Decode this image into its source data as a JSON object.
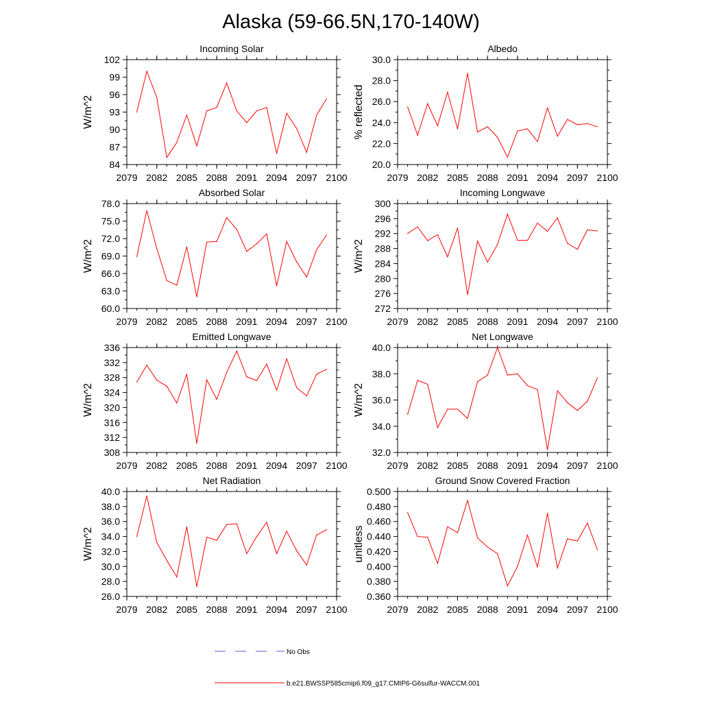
{
  "figure": {
    "title": "Alaska (59-66.5N,170-140W)",
    "legend": [
      {
        "label": "No Obs",
        "color": "#5a5ad2",
        "style": "dashed"
      },
      {
        "label": "b.e21.BWSSP585cmip6.f09_g17.CMIP6-G6sulfur-WACCM.001",
        "color": "#ff0000",
        "style": "solid"
      }
    ]
  },
  "chart_data": [
    {
      "type": "line",
      "title": "Incoming Solar",
      "xlabel": "",
      "ylabel": "W/m^2",
      "xlim": [
        2079,
        2100
      ],
      "xticks": [
        "2079",
        "2082",
        "2085",
        "2088",
        "2091",
        "2094",
        "2097",
        "2100"
      ],
      "ylim": [
        84,
        102
      ],
      "yticks": [
        "84",
        "87",
        "90",
        "93",
        "96",
        "99",
        "102"
      ],
      "line_color": "#ff0000",
      "x": [
        2080,
        2081,
        2082,
        2083,
        2084,
        2085,
        2086,
        2087,
        2088,
        2089,
        2090,
        2091,
        2092,
        2093,
        2094,
        2095,
        2096,
        2097,
        2098,
        2099
      ],
      "values": [
        93.0,
        100.0,
        95.5,
        85.2,
        87.8,
        92.5,
        87.2,
        93.2,
        93.8,
        98.0,
        93.2,
        91.2,
        93.2,
        93.8,
        85.9,
        92.8,
        90.2,
        86.1,
        92.5,
        95.3
      ]
    },
    {
      "type": "line",
      "title": "Albedo",
      "xlabel": "",
      "ylabel": "% reflected",
      "xlim": [
        2079,
        2100
      ],
      "xticks": [
        "2079",
        "2082",
        "2085",
        "2088",
        "2091",
        "2094",
        "2097",
        "2100"
      ],
      "ylim": [
        20.0,
        30.0
      ],
      "yticks": [
        "20.0",
        "22.0",
        "24.0",
        "26.0",
        "28.0",
        "30.0"
      ],
      "line_color": "#ff0000",
      "x": [
        2080,
        2081,
        2082,
        2083,
        2084,
        2085,
        2086,
        2087,
        2088,
        2089,
        2090,
        2091,
        2092,
        2093,
        2094,
        2095,
        2096,
        2097,
        2098,
        2099
      ],
      "values": [
        25.5,
        22.8,
        25.8,
        23.7,
        26.9,
        23.4,
        28.7,
        23.1,
        23.6,
        22.6,
        20.7,
        23.2,
        23.4,
        22.2,
        25.4,
        22.7,
        24.3,
        23.8,
        23.9,
        23.6
      ]
    },
    {
      "type": "line",
      "title": "Absorbed Solar",
      "xlabel": "",
      "ylabel": "W/m^2",
      "xlim": [
        2079,
        2100
      ],
      "xticks": [
        "2079",
        "2082",
        "2085",
        "2088",
        "2091",
        "2094",
        "2097",
        "2100"
      ],
      "ylim": [
        60.0,
        78.0
      ],
      "yticks": [
        "60.0",
        "63.0",
        "66.0",
        "69.0",
        "72.0",
        "75.0",
        "78.0"
      ],
      "line_color": "#ff0000",
      "x": [
        2080,
        2081,
        2082,
        2083,
        2084,
        2085,
        2086,
        2087,
        2088,
        2089,
        2090,
        2091,
        2092,
        2093,
        2094,
        2095,
        2096,
        2097,
        2098,
        2099
      ],
      "values": [
        68.9,
        76.8,
        70.3,
        64.8,
        64.0,
        70.6,
        62.0,
        71.4,
        71.5,
        75.6,
        73.6,
        69.8,
        71.1,
        72.8,
        63.9,
        71.5,
        68.0,
        65.4,
        70.1,
        72.6
      ]
    },
    {
      "type": "line",
      "title": "Incoming Longwave",
      "xlabel": "",
      "ylabel": "W/m^2",
      "xlim": [
        2079,
        2100
      ],
      "xticks": [
        "2079",
        "2082",
        "2085",
        "2088",
        "2091",
        "2094",
        "2097",
        "2100"
      ],
      "ylim": [
        272,
        300
      ],
      "yticks": [
        "272",
        "276",
        "280",
        "284",
        "288",
        "292",
        "296",
        "300"
      ],
      "line_color": "#ff0000",
      "x": [
        2080,
        2081,
        2082,
        2083,
        2084,
        2085,
        2086,
        2087,
        2088,
        2089,
        2090,
        2091,
        2092,
        2093,
        2094,
        2095,
        2096,
        2097,
        2098,
        2099
      ],
      "values": [
        292.0,
        293.8,
        290.1,
        291.7,
        285.8,
        293.5,
        275.7,
        290.0,
        284.4,
        289.1,
        297.2,
        290.2,
        290.2,
        294.8,
        292.6,
        296.2,
        289.4,
        287.8,
        293.0,
        292.7
      ]
    },
    {
      "type": "line",
      "title": "Emitted Longwave",
      "xlabel": "",
      "ylabel": "W/m^2",
      "xlim": [
        2079,
        2100
      ],
      "xticks": [
        "2079",
        "2082",
        "2085",
        "2088",
        "2091",
        "2094",
        "2097",
        "2100"
      ],
      "ylim": [
        308,
        336
      ],
      "yticks": [
        "308",
        "312",
        "316",
        "320",
        "324",
        "328",
        "332",
        "336"
      ],
      "line_color": "#ff0000",
      "x": [
        2080,
        2081,
        2082,
        2083,
        2084,
        2085,
        2086,
        2087,
        2088,
        2089,
        2090,
        2091,
        2092,
        2093,
        2094,
        2095,
        2096,
        2097,
        2098,
        2099
      ],
      "values": [
        326.8,
        331.3,
        327.3,
        325.7,
        321.2,
        328.9,
        310.4,
        327.4,
        322.2,
        329.4,
        335.1,
        328.2,
        327.2,
        331.6,
        324.6,
        333.0,
        325.3,
        323.1,
        328.9,
        330.2
      ]
    },
    {
      "type": "line",
      "title": "Net Longwave",
      "xlabel": "",
      "ylabel": "W/m^2",
      "xlim": [
        2079,
        2100
      ],
      "xticks": [
        "2079",
        "2082",
        "2085",
        "2088",
        "2091",
        "2094",
        "2097",
        "2100"
      ],
      "ylim": [
        32.0,
        40.0
      ],
      "yticks": [
        "32.0",
        "34.0",
        "36.0",
        "38.0",
        "40.0"
      ],
      "line_color": "#ff0000",
      "x": [
        2080,
        2081,
        2082,
        2083,
        2084,
        2085,
        2086,
        2087,
        2088,
        2089,
        2090,
        2091,
        2092,
        2093,
        2094,
        2095,
        2096,
        2097,
        2098,
        2099
      ],
      "values": [
        34.9,
        37.5,
        37.2,
        33.9,
        35.3,
        35.3,
        34.6,
        37.4,
        37.9,
        40.0,
        37.9,
        38.0,
        37.1,
        36.8,
        32.2,
        36.7,
        35.8,
        35.2,
        35.9,
        37.7
      ]
    },
    {
      "type": "line",
      "title": "Net Radiation",
      "xlabel": "",
      "ylabel": "W/m^2",
      "xlim": [
        2079,
        2100
      ],
      "xticks": [
        "2079",
        "2082",
        "2085",
        "2088",
        "2091",
        "2094",
        "2097",
        "2100"
      ],
      "ylim": [
        26.0,
        40.0
      ],
      "yticks": [
        "26.0",
        "28.0",
        "30.0",
        "32.0",
        "34.0",
        "36.0",
        "38.0",
        "40.0"
      ],
      "line_color": "#ff0000",
      "x": [
        2080,
        2081,
        2082,
        2083,
        2084,
        2085,
        2086,
        2087,
        2088,
        2089,
        2090,
        2091,
        2092,
        2093,
        2094,
        2095,
        2096,
        2097,
        2098,
        2099
      ],
      "values": [
        34.0,
        39.4,
        33.2,
        30.8,
        28.6,
        35.3,
        27.3,
        33.9,
        33.5,
        35.6,
        35.7,
        31.7,
        34.0,
        35.9,
        31.7,
        34.7,
        32.1,
        30.2,
        34.2,
        34.9
      ]
    },
    {
      "type": "line",
      "title": "Ground Snow Covered Fraction",
      "xlabel": "",
      "ylabel": "unitless",
      "xlim": [
        2079,
        2100
      ],
      "xticks": [
        "2079",
        "2082",
        "2085",
        "2088",
        "2091",
        "2094",
        "2097",
        "2100"
      ],
      "ylim": [
        0.36,
        0.5
      ],
      "yticks": [
        "0.360",
        "0.380",
        "0.400",
        "0.420",
        "0.440",
        "0.460",
        "0.480",
        "0.500"
      ],
      "line_color": "#ff0000",
      "x": [
        2080,
        2081,
        2082,
        2083,
        2084,
        2085,
        2086,
        2087,
        2088,
        2089,
        2090,
        2091,
        2092,
        2093,
        2094,
        2095,
        2096,
        2097,
        2098,
        2099
      ],
      "values": [
        0.472,
        0.44,
        0.439,
        0.404,
        0.453,
        0.445,
        0.488,
        0.438,
        0.426,
        0.417,
        0.374,
        0.4,
        0.442,
        0.399,
        0.471,
        0.398,
        0.437,
        0.434,
        0.458,
        0.422
      ]
    }
  ]
}
